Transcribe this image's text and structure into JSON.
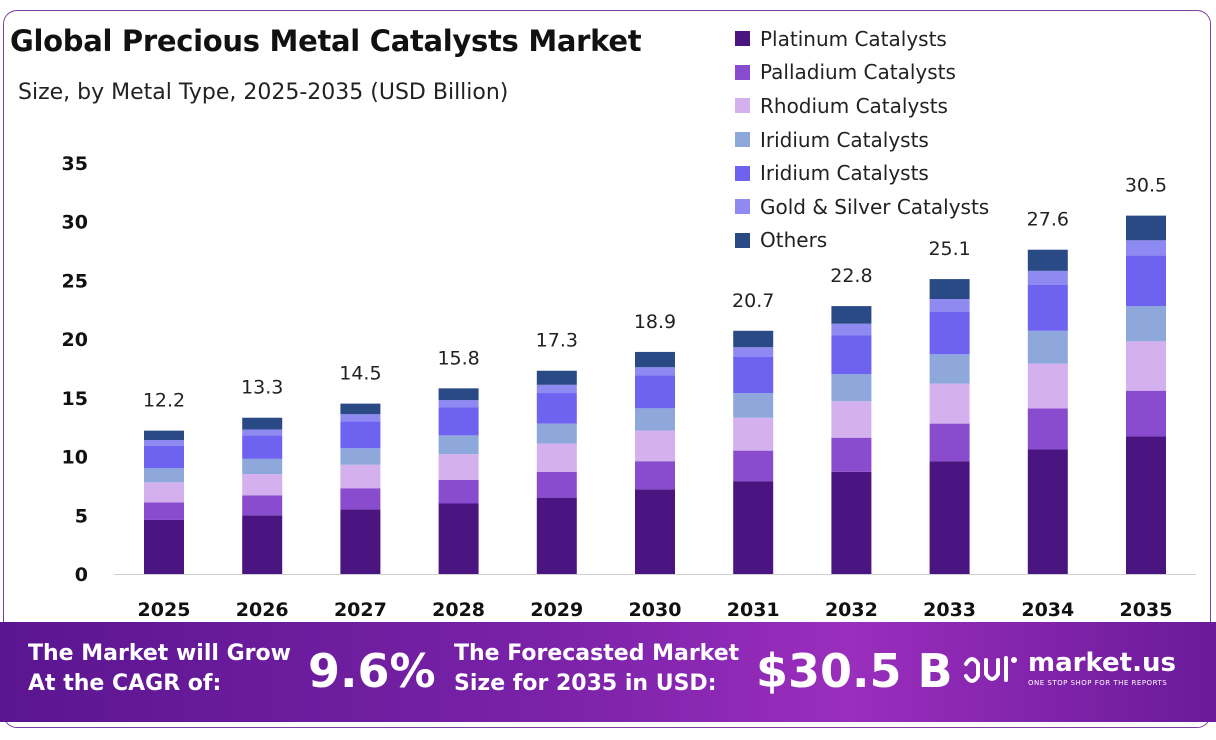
{
  "header": {
    "title": "Global Precious Metal Catalysts Market",
    "subtitle": "Size, by Metal Type, 2025-2035 (USD Billion)"
  },
  "legend": [
    {
      "label": "Platinum Catalysts",
      "color": "#4a1580"
    },
    {
      "label": "Palladium Catalysts",
      "color": "#8a4ccf"
    },
    {
      "label": "Rhodium Catalysts",
      "color": "#d5b0ee"
    },
    {
      "label": "Iridium Catalysts",
      "color": "#8fa8dc"
    },
    {
      "label": "Iridium Catalysts",
      "color": "#6d63f0"
    },
    {
      "label": "Gold & Silver Catalysts",
      "color": "#8e8af2"
    },
    {
      "label": "Others",
      "color": "#2a4a86"
    }
  ],
  "chart_data": {
    "type": "bar",
    "stacked": true,
    "categories": [
      "2025",
      "2026",
      "2027",
      "2028",
      "2029",
      "2030",
      "2031",
      "2032",
      "2033",
      "2034",
      "2035"
    ],
    "totals": [
      12.2,
      13.3,
      14.5,
      15.8,
      17.3,
      18.9,
      20.7,
      22.8,
      25.1,
      27.6,
      30.5
    ],
    "total_labels": [
      "12.2",
      "13.3",
      "14.5",
      "15.8",
      "17.3",
      "18.9",
      "20.7",
      "22.8",
      "25.1",
      "27.6",
      "30.5"
    ],
    "series": [
      {
        "name": "Platinum Catalysts",
        "values": [
          4.6,
          5.0,
          5.5,
          6.0,
          6.5,
          7.2,
          7.9,
          8.7,
          9.6,
          10.6,
          11.7
        ]
      },
      {
        "name": "Palladium Catalysts",
        "values": [
          1.5,
          1.7,
          1.8,
          2.0,
          2.2,
          2.4,
          2.6,
          2.9,
          3.2,
          3.5,
          3.9
        ]
      },
      {
        "name": "Rhodium Catalysts",
        "values": [
          1.7,
          1.8,
          2.0,
          2.2,
          2.4,
          2.6,
          2.8,
          3.1,
          3.4,
          3.8,
          4.2
        ]
      },
      {
        "name": "Iridium Catalysts",
        "values": [
          1.2,
          1.3,
          1.4,
          1.6,
          1.7,
          1.9,
          2.1,
          2.3,
          2.5,
          2.8,
          3.0
        ]
      },
      {
        "name": "Iridium Catalysts",
        "values": [
          1.9,
          2.0,
          2.3,
          2.4,
          2.6,
          2.8,
          3.1,
          3.3,
          3.6,
          3.9,
          4.3
        ]
      },
      {
        "name": "Gold & Silver Catalysts",
        "values": [
          0.5,
          0.5,
          0.6,
          0.6,
          0.7,
          0.7,
          0.8,
          1.0,
          1.1,
          1.2,
          1.3
        ]
      },
      {
        "name": "Others",
        "values": [
          0.8,
          1.0,
          0.9,
          1.0,
          1.2,
          1.3,
          1.4,
          1.5,
          1.7,
          1.8,
          2.1
        ]
      }
    ],
    "yticks": [
      "0",
      "5",
      "10",
      "15",
      "20",
      "25",
      "30",
      "35"
    ],
    "ylim": [
      0,
      35
    ],
    "grid": false,
    "legend_position": "top-right"
  },
  "banner": {
    "cagr_line1": "The Market will Grow",
    "cagr_line2": "At the CAGR of:",
    "cagr_value": "9.6%",
    "forecast_line1": "The Forecasted Market",
    "forecast_line2": "Size for 2035 in USD:",
    "forecast_value": "$30.5 B",
    "brand": "market.us",
    "tagline": "ONE STOP SHOP FOR THE REPORTS"
  }
}
